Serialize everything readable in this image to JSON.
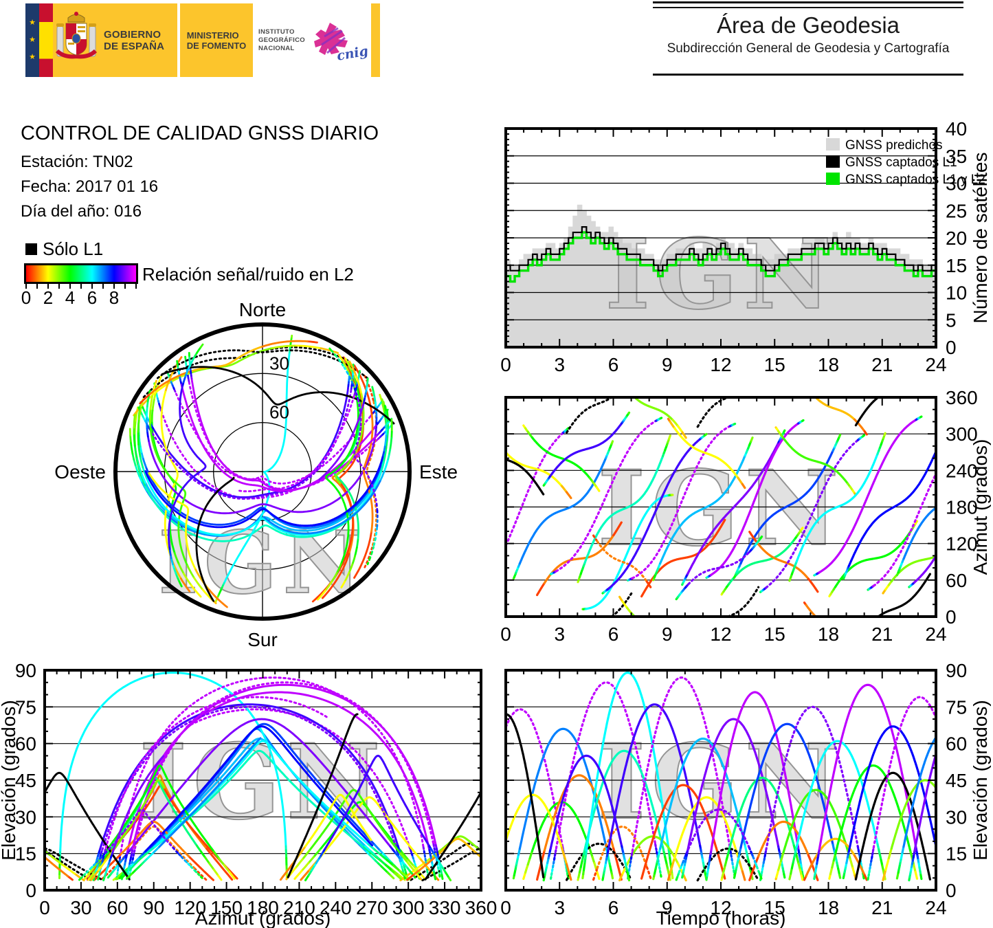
{
  "header": {
    "gov_banner": {
      "stars": [
        "★",
        "★",
        "★"
      ],
      "block1_line1": "GOBIERNO",
      "block1_line2": "DE ESPAÑA",
      "block2_line1": "MINISTERIO",
      "block2_line2": "DE FOMENTO",
      "block3_line1": "INSTITUTO",
      "block3_line2": "GEOGRÁFICO",
      "block3_line3": "NACIONAL",
      "cnig_text": "cnig"
    },
    "geodesia": {
      "title": "Área de Geodesia",
      "subtitle": "Subdirección General de Geodesia y Cartografía"
    }
  },
  "report": {
    "title": "CONTROL DE CALIDAD GNSS DIARIO",
    "station_label": "Estación: TN02",
    "date_label": "Fecha: 2017 01 16",
    "doy_label": "Día del año: 016"
  },
  "legend": {
    "solo_l1": "Sólo L1",
    "colorbar_label": "Relación señal/ruido en L2",
    "colorbar_ticks": [
      0,
      2,
      4,
      6,
      8
    ],
    "colorbar_min": 0,
    "colorbar_max": 10
  },
  "watermark": "IGN",
  "colors": {
    "predicted_gray": "#d8d8d8",
    "captured_l1_black": "#000000",
    "captured_l1l2_green": "#00e400",
    "l1_only_black": "#000000"
  },
  "chart_data": [
    {
      "id": "skyplot",
      "type": "scatter-polar",
      "labels": {
        "north": "Norte",
        "south": "Sur",
        "east": "Este",
        "west": "Oeste"
      },
      "rings": [
        {
          "elevation": 30,
          "label": "30"
        },
        {
          "elevation": 60,
          "label": "60"
        }
      ],
      "elevation_range": [
        0,
        90
      ],
      "color_scale": "snr 0-10 rainbow red->magenta, -1 = L1 only (black)",
      "pass_format": [
        "rise_time_h",
        "duration_h",
        "azimuth_rise_deg",
        "azimuth_set_deg",
        "max_elevation_deg",
        "snr_l2",
        "curve",
        "dotted"
      ],
      "passes": [
        [
          -2.0,
          5.6,
          35,
          312,
          74,
          9.5,
          -0.08,
          1
        ],
        [
          0.3,
          5.8,
          52,
          298,
          66,
          7.0,
          0.12,
          0
        ],
        [
          0.8,
          4.6,
          322,
          198,
          36,
          4.0,
          0.1,
          0
        ],
        [
          1.6,
          5.0,
          28,
          162,
          47,
          0.8,
          0.14,
          0
        ],
        [
          2.4,
          6.4,
          68,
          328,
          85,
          9.3,
          -0.1,
          1
        ],
        [
          3.1,
          4.2,
          288,
          412,
          19,
          -1,
          0.1,
          1
        ],
        [
          3.9,
          5.4,
          46,
          308,
          57,
          5.5,
          0.12,
          0
        ],
        [
          4.2,
          5.2,
          12,
          200,
          89,
          5.8,
          -0.15,
          0
        ],
        [
          4.7,
          3.6,
          142,
          38,
          26,
          1.2,
          0.1,
          1
        ],
        [
          5.3,
          6.0,
          36,
          302,
          76,
          8.6,
          -0.08,
          0
        ],
        [
          6.1,
          4.2,
          44,
          -78,
          22,
          3.2,
          0.1,
          0
        ],
        [
          6.7,
          6.2,
          58,
          318,
          87,
          9.6,
          -0.11,
          1
        ],
        [
          7.4,
          5.0,
          24,
          168,
          43,
          0.6,
          0.13,
          0
        ],
        [
          8.1,
          5.8,
          50,
          304,
          62,
          6.5,
          0.11,
          0
        ],
        [
          8.9,
          4.6,
          332,
          204,
          38,
          2.2,
          0.1,
          0
        ],
        [
          9.7,
          6.0,
          44,
          314,
          70,
          8.8,
          0.05,
          0
        ],
        [
          10.4,
          4.0,
          296,
          424,
          17,
          -1,
          0.1,
          1
        ],
        [
          11.1,
          5.6,
          62,
          324,
          81,
          9.4,
          -0.1,
          0
        ],
        [
          11.9,
          4.8,
          30,
          152,
          46,
          4.8,
          0.12,
          0
        ],
        [
          12.6,
          6.2,
          54,
          308,
          68,
          7.4,
          0.1,
          0
        ],
        [
          13.4,
          4.2,
          148,
          32,
          28,
          0.9,
          0.1,
          0
        ],
        [
          14.1,
          6.0,
          38,
          300,
          75,
          9.2,
          -0.08,
          1
        ],
        [
          14.9,
          4.8,
          318,
          192,
          41,
          3.6,
          0.11,
          0
        ],
        [
          15.7,
          5.6,
          48,
          312,
          61,
          5.8,
          0.12,
          0
        ],
        [
          16.4,
          4.0,
          34,
          -72,
          21,
          1.5,
          0.1,
          0
        ],
        [
          17.1,
          6.2,
          66,
          330,
          84,
          9.5,
          -0.1,
          0
        ],
        [
          17.9,
          5.2,
          26,
          164,
          51,
          4.2,
          0.13,
          0
        ],
        [
          18.7,
          5.8,
          52,
          306,
          67,
          8.2,
          0.1,
          0
        ],
        [
          19.4,
          4.4,
          308,
          436,
          48,
          -1,
          0.1,
          0
        ],
        [
          20.1,
          6.0,
          42,
          308,
          79,
          9.3,
          -0.09,
          1
        ],
        [
          20.9,
          5.0,
          32,
          156,
          45,
          2.8,
          0.12,
          0
        ],
        [
          21.7,
          5.6,
          58,
          318,
          65,
          6.8,
          0.1,
          0
        ],
        [
          22.4,
          5.8,
          46,
          304,
          73,
          9.0,
          -0.07,
          0
        ],
        [
          -0.8,
          4.6,
          300,
          188,
          39,
          1.8,
          0.11,
          0
        ],
        [
          9.3,
          5.2,
          20,
          140,
          33,
          9.1,
          0.12,
          1
        ],
        [
          2.0,
          5.0,
          210,
          340,
          55,
          8.4,
          0.11,
          0
        ],
        [
          -2.2,
          4.4,
          320,
          196,
          72,
          -1,
          0.1,
          0
        ]
      ]
    },
    {
      "id": "satellite_count",
      "type": "line",
      "ylabel": "Número de satélites",
      "xlim": [
        0,
        24
      ],
      "ylim": [
        0,
        40
      ],
      "xtick_step": 3,
      "ytick_step": 5,
      "xticks": [
        0,
        3,
        6,
        9,
        12,
        15,
        18,
        21,
        24
      ],
      "yticks": [
        0,
        5,
        10,
        15,
        20,
        25,
        30,
        35,
        40
      ],
      "grid": [
        5,
        10,
        15,
        20,
        25,
        30,
        35
      ],
      "legend": [
        {
          "label": "GNSS predichos",
          "color": "#d8d8d8"
        },
        {
          "label": "GNSS captados L1",
          "color": "#000000"
        },
        {
          "label": "GNSS captados L1 y L2",
          "color": "#00e400"
        }
      ],
      "x_step_hours": 0.25,
      "series": {
        "predichos": [
          16,
          15,
          15,
          16,
          17,
          17,
          18,
          18,
          18,
          19,
          19,
          18,
          19,
          20,
          22,
          24,
          26,
          25,
          24,
          23,
          22,
          21,
          21,
          22,
          21,
          20,
          19,
          19,
          18,
          18,
          18,
          17,
          17,
          16,
          16,
          16,
          17,
          17,
          18,
          18,
          18,
          19,
          18,
          18,
          19,
          19,
          18,
          19,
          20,
          19,
          19,
          18,
          19,
          18,
          18,
          17,
          17,
          16,
          16,
          16,
          17,
          17,
          17,
          18,
          18,
          18,
          19,
          19,
          19,
          20,
          20,
          19,
          20,
          21,
          20,
          20,
          21,
          20,
          20,
          19,
          19,
          20,
          19,
          19,
          19,
          18,
          18,
          18,
          17,
          17,
          16,
          16,
          16,
          15,
          15,
          15,
          14
        ],
        "captados_l1": [
          15,
          14,
          14,
          15,
          15,
          16,
          17,
          16,
          17,
          18,
          17,
          17,
          18,
          19,
          20,
          21,
          21,
          22,
          21,
          20,
          21,
          20,
          19,
          20,
          19,
          18,
          18,
          17,
          17,
          17,
          16,
          16,
          16,
          15,
          14,
          15,
          16,
          16,
          17,
          17,
          17,
          18,
          17,
          16,
          17,
          18,
          17,
          18,
          19,
          18,
          17,
          17,
          18,
          17,
          16,
          16,
          16,
          15,
          14,
          14,
          15,
          16,
          16,
          17,
          17,
          17,
          18,
          18,
          18,
          19,
          19,
          18,
          19,
          20,
          19,
          18,
          19,
          18,
          19,
          18,
          18,
          19,
          18,
          17,
          18,
          17,
          17,
          16,
          16,
          15,
          15,
          14,
          15,
          14,
          14,
          15,
          14
        ],
        "captados_l1_l2": [
          13,
          12,
          13,
          14,
          14,
          15,
          16,
          15,
          16,
          17,
          16,
          16,
          17,
          18,
          19,
          20,
          20,
          21,
          20,
          19,
          20,
          19,
          18,
          19,
          18,
          17,
          17,
          16,
          16,
          16,
          15,
          15,
          15,
          14,
          13,
          14,
          15,
          15,
          16,
          16,
          16,
          17,
          16,
          15,
          16,
          17,
          16,
          17,
          18,
          17,
          16,
          16,
          17,
          16,
          15,
          15,
          15,
          14,
          13,
          13,
          14,
          15,
          15,
          16,
          16,
          16,
          17,
          17,
          17,
          18,
          18,
          17,
          18,
          19,
          18,
          17,
          18,
          17,
          18,
          17,
          17,
          18,
          17,
          16,
          17,
          16,
          16,
          15,
          15,
          14,
          14,
          13,
          14,
          13,
          13,
          14,
          13
        ]
      }
    },
    {
      "id": "azimuth_vs_time",
      "type": "line",
      "ylabel": "Azimut (grados)",
      "xlim": [
        0,
        24
      ],
      "ylim": [
        0,
        360
      ],
      "xticks": [
        0,
        3,
        6,
        9,
        12,
        15,
        18,
        21,
        24
      ],
      "yticks": [
        0,
        60,
        120,
        180,
        240,
        300,
        360
      ],
      "grid": [
        60,
        120,
        180,
        240,
        300
      ],
      "source": "same satellite passes as skyplot"
    },
    {
      "id": "elevation_vs_azimuth",
      "type": "line",
      "xlabel": "Azimut (grados)",
      "ylabel": "Elevación (grados)",
      "xlim": [
        0,
        360
      ],
      "ylim": [
        0,
        90
      ],
      "xticks": [
        0,
        30,
        60,
        90,
        120,
        150,
        180,
        210,
        240,
        270,
        300,
        330,
        360
      ],
      "yticks": [
        0,
        15,
        30,
        45,
        60,
        75,
        90
      ],
      "grid": [
        15,
        30,
        45,
        60,
        75
      ],
      "source": "same satellite passes as skyplot"
    },
    {
      "id": "elevation_vs_time",
      "type": "line",
      "xlabel": "Tiempo (horas)",
      "ylabel": "Elevación (grados)",
      "xlim": [
        0,
        24
      ],
      "ylim": [
        0,
        90
      ],
      "xticks": [
        0,
        3,
        6,
        9,
        12,
        15,
        18,
        21,
        24
      ],
      "yticks": [
        0,
        15,
        30,
        45,
        60,
        75,
        90
      ],
      "grid": [
        15,
        30,
        45,
        60,
        75
      ],
      "source": "same satellite passes as skyplot"
    }
  ]
}
